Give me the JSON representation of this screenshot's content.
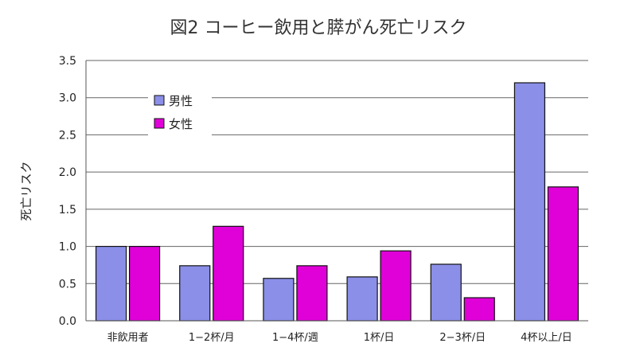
{
  "chart_data": {
    "type": "bar",
    "title": "図2 コーヒー飲用と膵がん死亡リスク",
    "xlabel": "",
    "ylabel": "死亡リスク",
    "ylim": [
      0,
      3.5
    ],
    "yticks": [
      "0.0",
      "0.5",
      "1.0",
      "1.5",
      "2.0",
      "2.5",
      "3.0",
      "3.5"
    ],
    "grid": true,
    "legend_position": "upper-left",
    "categories": [
      "非飲用者",
      "1−2杯/月",
      "1−4杯/週",
      "1杯/日",
      "2−3杯/日",
      "4杯以上/日"
    ],
    "series": [
      {
        "name": "男性",
        "color": "#8b8fe8",
        "values": [
          1.0,
          0.74,
          0.57,
          0.59,
          0.76,
          3.2
        ]
      },
      {
        "name": "女性",
        "color": "#e000d8",
        "values": [
          1.0,
          1.27,
          0.74,
          0.94,
          0.31,
          1.8
        ]
      }
    ]
  }
}
